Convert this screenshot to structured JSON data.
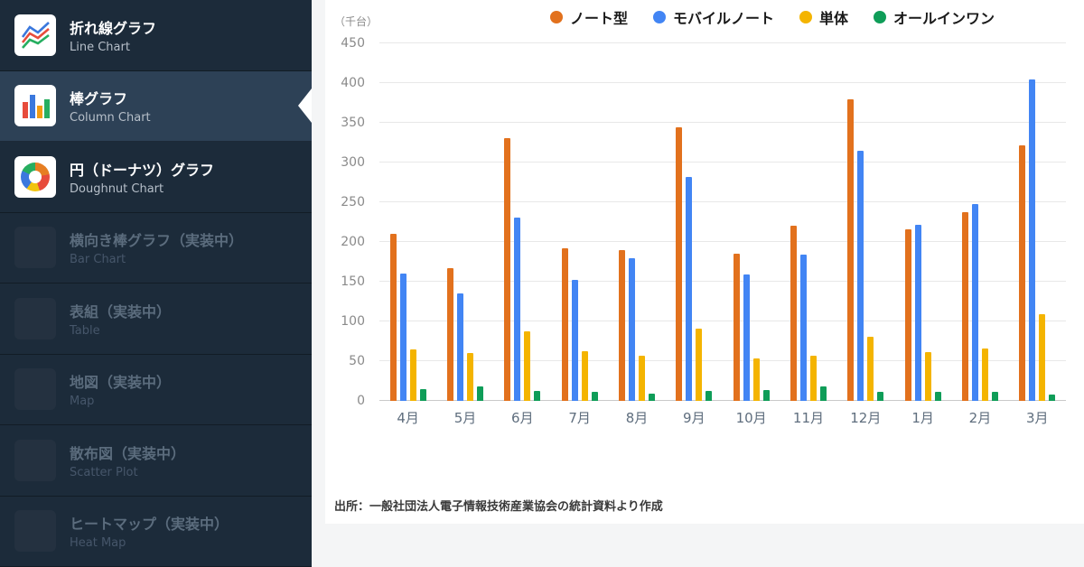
{
  "sidebar": {
    "items": [
      {
        "title": "折れ線グラフ",
        "subtitle": "Line Chart",
        "icon": "line-chart-icon",
        "state": "enabled"
      },
      {
        "title": "棒グラフ",
        "subtitle": "Column Chart",
        "icon": "column-chart-icon",
        "state": "selected"
      },
      {
        "title": "円（ドーナツ）グラフ",
        "subtitle": "Doughnut Chart",
        "icon": "doughnut-chart-icon",
        "state": "enabled"
      },
      {
        "title": "横向き棒グラフ（実装中）",
        "subtitle": "Bar Chart",
        "icon": "placeholder-icon",
        "state": "disabled"
      },
      {
        "title": "表組（実装中）",
        "subtitle": "Table",
        "icon": "placeholder-icon",
        "state": "disabled"
      },
      {
        "title": "地図（実装中）",
        "subtitle": "Map",
        "icon": "placeholder-icon",
        "state": "disabled"
      },
      {
        "title": "散布図（実装中）",
        "subtitle": "Scatter Plot",
        "icon": "placeholder-icon",
        "state": "disabled"
      },
      {
        "title": "ヒートマップ（実装中）",
        "subtitle": "Heat Map",
        "icon": "placeholder-icon",
        "state": "disabled"
      }
    ]
  },
  "chart_data": {
    "type": "bar",
    "unit_label": "（千台）",
    "categories": [
      "4月",
      "5月",
      "6月",
      "7月",
      "8月",
      "9月",
      "10月",
      "11月",
      "12月",
      "1月",
      "2月",
      "3月"
    ],
    "series": [
      {
        "name": "ノート型",
        "color": "#E2711D",
        "values": [
          210,
          167,
          331,
          192,
          190,
          344,
          185,
          220,
          379,
          216,
          237,
          322
        ]
      },
      {
        "name": "モバイルノート",
        "color": "#4285F4",
        "values": [
          160,
          135,
          231,
          152,
          179,
          282,
          159,
          184,
          315,
          222,
          248,
          405
        ]
      },
      {
        "name": "単体",
        "color": "#F4B400",
        "values": [
          65,
          60,
          88,
          63,
          57,
          91,
          53,
          57,
          81,
          61,
          66,
          109
        ]
      },
      {
        "name": "オールインワン",
        "color": "#0F9D58",
        "values": [
          15,
          18,
          12,
          11,
          9,
          13,
          14,
          18,
          11,
          11,
          11,
          8
        ]
      }
    ],
    "ylim": [
      0,
      450
    ],
    "ytick_step": 50,
    "grid": true,
    "legend_position": "top",
    "source": "出所：一般社団法人電子情報技術産業協会の統計資料より作成"
  }
}
